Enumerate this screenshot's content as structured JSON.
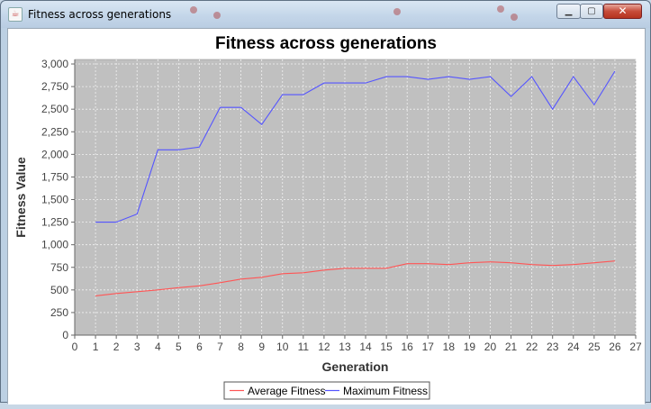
{
  "window": {
    "title": "Fitness across generations",
    "controls": {
      "minimize": "▁",
      "maximize": "▢",
      "close": "✕"
    }
  },
  "colors": {
    "plot_background": "#c0c0c0",
    "gridline": "#f2f2f2",
    "avg_series": "#ff5555",
    "max_series": "#5555ff"
  },
  "chart_data": {
    "type": "line",
    "title": "Fitness across generations",
    "xlabel": "Generation",
    "ylabel": "Fitness Value",
    "xlim": [
      0,
      27
    ],
    "ylim": [
      0,
      3050
    ],
    "x_ticks": [
      0,
      1,
      2,
      3,
      4,
      5,
      6,
      7,
      8,
      9,
      10,
      11,
      12,
      13,
      14,
      15,
      16,
      17,
      18,
      19,
      20,
      21,
      22,
      23,
      24,
      25,
      26,
      27
    ],
    "y_ticks": [
      0,
      250,
      500,
      750,
      1000,
      1250,
      1500,
      1750,
      2000,
      2250,
      2500,
      2750,
      3000
    ],
    "y_tick_labels": [
      "0",
      "250",
      "500",
      "750",
      "1,000",
      "1,250",
      "1,500",
      "1,750",
      "2,000",
      "2,250",
      "2,500",
      "2,750",
      "3,000"
    ],
    "grid": true,
    "legend_position": "bottom-center",
    "x": [
      1,
      2,
      3,
      4,
      5,
      6,
      7,
      8,
      9,
      10,
      11,
      12,
      13,
      14,
      15,
      16,
      17,
      18,
      19,
      20,
      21,
      22,
      23,
      24,
      25,
      26
    ],
    "series": [
      {
        "name": "Average Fitness",
        "color": "#ff5555",
        "values": [
          435,
          460,
          480,
          500,
          525,
          545,
          580,
          620,
          640,
          680,
          690,
          720,
          740,
          740,
          740,
          790,
          790,
          780,
          800,
          810,
          800,
          780,
          770,
          780,
          800,
          820
        ]
      },
      {
        "name": "Maximum Fitness",
        "color": "#5555ff",
        "values": [
          1250,
          1250,
          1340,
          2050,
          2050,
          2080,
          2520,
          2520,
          2330,
          2660,
          2660,
          2790,
          2790,
          2790,
          2860,
          2860,
          2830,
          2860,
          2830,
          2860,
          2640,
          2860,
          2500,
          2860,
          2550,
          2920
        ]
      }
    ]
  }
}
